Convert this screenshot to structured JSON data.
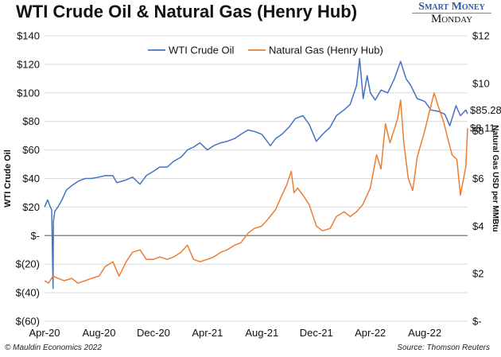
{
  "brand": {
    "line1": "Smart Money",
    "line2": "Monday"
  },
  "footer": {
    "left": "© Mauldin Economics 2022",
    "right": "Source: Thomson Reuters"
  },
  "colors": {
    "oil": "#4472c4",
    "gas": "#ed7d31",
    "grid": "#d9d9d9",
    "zero": "#7f7f7f"
  },
  "chart_data": {
    "type": "line",
    "title": "WTI Crude Oil & Natural Gas (Henry Hub)",
    "xlabel": "",
    "ylabel": "WTI Crude Oil",
    "y2label": "Natural Gas USD per MMBtu",
    "x_ticks": [
      "Apr-20",
      "Aug-20",
      "Dec-20",
      "Apr-21",
      "Aug-21",
      "Dec-21",
      "Apr-22",
      "Aug-22"
    ],
    "y_ticks": [
      "$140",
      "$120",
      "$100",
      "$80",
      "$60",
      "$40",
      "$20",
      "$-",
      "$(20)",
      "$(40)",
      "$(60)"
    ],
    "y2_ticks": [
      "$12",
      "$10",
      "$8",
      "$6",
      "$4",
      "$2",
      "$-"
    ],
    "ylim": [
      -60,
      140
    ],
    "y2lim": [
      0,
      12
    ],
    "grid": true,
    "legend_position": "top",
    "x_range": [
      "2020-04-01",
      "2022-11-05"
    ],
    "series": [
      {
        "name": "WTI Crude Oil",
        "axis": "left",
        "end_label": "$85.28",
        "points": [
          [
            "2020-04-01",
            20
          ],
          [
            "2020-04-08",
            25
          ],
          [
            "2020-04-14",
            20
          ],
          [
            "2020-04-17",
            18
          ],
          [
            "2020-04-20",
            -37
          ],
          [
            "2020-04-21",
            10
          ],
          [
            "2020-04-24",
            17
          ],
          [
            "2020-05-01",
            20
          ],
          [
            "2020-05-10",
            25
          ],
          [
            "2020-05-20",
            32
          ],
          [
            "2020-06-01",
            35
          ],
          [
            "2020-06-15",
            38
          ],
          [
            "2020-07-01",
            40
          ],
          [
            "2020-07-15",
            40
          ],
          [
            "2020-08-01",
            41
          ],
          [
            "2020-08-15",
            42
          ],
          [
            "2020-09-01",
            42
          ],
          [
            "2020-09-10",
            37
          ],
          [
            "2020-10-01",
            39
          ],
          [
            "2020-10-15",
            41
          ],
          [
            "2020-11-01",
            36
          ],
          [
            "2020-11-15",
            42
          ],
          [
            "2020-12-01",
            45
          ],
          [
            "2020-12-15",
            48
          ],
          [
            "2021-01-01",
            48
          ],
          [
            "2021-01-15",
            52
          ],
          [
            "2021-02-01",
            55
          ],
          [
            "2021-02-15",
            60
          ],
          [
            "2021-03-01",
            62
          ],
          [
            "2021-03-15",
            65
          ],
          [
            "2021-04-01",
            60
          ],
          [
            "2021-04-15",
            63
          ],
          [
            "2021-05-01",
            65
          ],
          [
            "2021-05-15",
            66
          ],
          [
            "2021-06-01",
            68
          ],
          [
            "2021-06-15",
            71
          ],
          [
            "2021-07-01",
            74
          ],
          [
            "2021-07-15",
            73
          ],
          [
            "2021-08-01",
            71
          ],
          [
            "2021-08-20",
            63
          ],
          [
            "2021-09-01",
            68
          ],
          [
            "2021-09-15",
            71
          ],
          [
            "2021-10-01",
            76
          ],
          [
            "2021-10-15",
            82
          ],
          [
            "2021-11-01",
            84
          ],
          [
            "2021-11-15",
            78
          ],
          [
            "2021-12-01",
            66
          ],
          [
            "2021-12-15",
            71
          ],
          [
            "2022-01-01",
            76
          ],
          [
            "2022-01-15",
            84
          ],
          [
            "2022-02-01",
            88
          ],
          [
            "2022-02-15",
            92
          ],
          [
            "2022-03-01",
            105
          ],
          [
            "2022-03-08",
            124
          ],
          [
            "2022-03-16",
            96
          ],
          [
            "2022-03-25",
            112
          ],
          [
            "2022-04-01",
            100
          ],
          [
            "2022-04-12",
            95
          ],
          [
            "2022-04-25",
            102
          ],
          [
            "2022-05-10",
            100
          ],
          [
            "2022-05-25",
            110
          ],
          [
            "2022-06-08",
            122
          ],
          [
            "2022-06-20",
            110
          ],
          [
            "2022-07-01",
            105
          ],
          [
            "2022-07-15",
            96
          ],
          [
            "2022-08-01",
            94
          ],
          [
            "2022-08-15",
            88
          ],
          [
            "2022-09-01",
            87
          ],
          [
            "2022-09-15",
            85
          ],
          [
            "2022-09-26",
            77
          ],
          [
            "2022-10-10",
            91
          ],
          [
            "2022-10-20",
            84
          ],
          [
            "2022-11-01",
            88
          ],
          [
            "2022-11-05",
            85.28
          ]
        ]
      },
      {
        "name": "Natural Gas (Henry Hub)",
        "axis": "right",
        "end_label": "$8.11",
        "points": [
          [
            "2020-04-01",
            1.7
          ],
          [
            "2020-04-10",
            1.6
          ],
          [
            "2020-04-20",
            1.9
          ],
          [
            "2020-05-01",
            1.8
          ],
          [
            "2020-05-15",
            1.7
          ],
          [
            "2020-06-01",
            1.8
          ],
          [
            "2020-06-15",
            1.6
          ],
          [
            "2020-07-01",
            1.7
          ],
          [
            "2020-07-15",
            1.8
          ],
          [
            "2020-08-01",
            1.9
          ],
          [
            "2020-08-15",
            2.3
          ],
          [
            "2020-09-01",
            2.5
          ],
          [
            "2020-09-15",
            1.9
          ],
          [
            "2020-10-01",
            2.5
          ],
          [
            "2020-10-15",
            2.9
          ],
          [
            "2020-11-01",
            3.0
          ],
          [
            "2020-11-15",
            2.6
          ],
          [
            "2020-12-01",
            2.6
          ],
          [
            "2020-12-15",
            2.7
          ],
          [
            "2021-01-01",
            2.6
          ],
          [
            "2021-01-15",
            2.7
          ],
          [
            "2021-02-01",
            2.9
          ],
          [
            "2021-02-15",
            3.2
          ],
          [
            "2021-03-01",
            2.6
          ],
          [
            "2021-03-15",
            2.5
          ],
          [
            "2021-04-01",
            2.6
          ],
          [
            "2021-04-15",
            2.7
          ],
          [
            "2021-05-01",
            2.9
          ],
          [
            "2021-05-15",
            3.0
          ],
          [
            "2021-06-01",
            3.2
          ],
          [
            "2021-06-15",
            3.3
          ],
          [
            "2021-07-01",
            3.7
          ],
          [
            "2021-07-15",
            3.9
          ],
          [
            "2021-08-01",
            4.0
          ],
          [
            "2021-08-15",
            4.3
          ],
          [
            "2021-09-01",
            4.7
          ],
          [
            "2021-09-15",
            5.3
          ],
          [
            "2021-09-25",
            5.7
          ],
          [
            "2021-10-06",
            6.3
          ],
          [
            "2021-10-12",
            5.4
          ],
          [
            "2021-10-20",
            5.6
          ],
          [
            "2021-11-01",
            5.3
          ],
          [
            "2021-11-15",
            4.9
          ],
          [
            "2021-12-01",
            4.0
          ],
          [
            "2021-12-15",
            3.8
          ],
          [
            "2022-01-01",
            3.9
          ],
          [
            "2022-01-15",
            4.4
          ],
          [
            "2022-02-01",
            4.6
          ],
          [
            "2022-02-15",
            4.4
          ],
          [
            "2022-03-01",
            4.6
          ],
          [
            "2022-03-15",
            4.9
          ],
          [
            "2022-04-01",
            5.6
          ],
          [
            "2022-04-15",
            7.0
          ],
          [
            "2022-04-25",
            6.4
          ],
          [
            "2022-05-05",
            8.3
          ],
          [
            "2022-05-15",
            7.5
          ],
          [
            "2022-06-01",
            8.5
          ],
          [
            "2022-06-08",
            9.3
          ],
          [
            "2022-06-15",
            7.5
          ],
          [
            "2022-06-25",
            6.0
          ],
          [
            "2022-07-01",
            5.7
          ],
          [
            "2022-07-05",
            5.5
          ],
          [
            "2022-07-15",
            6.9
          ],
          [
            "2022-08-01",
            8.0
          ],
          [
            "2022-08-10",
            8.7
          ],
          [
            "2022-08-22",
            9.6
          ],
          [
            "2022-09-01",
            9.0
          ],
          [
            "2022-09-12",
            8.4
          ],
          [
            "2022-09-20",
            7.8
          ],
          [
            "2022-10-01",
            7.0
          ],
          [
            "2022-10-12",
            6.8
          ],
          [
            "2022-10-20",
            5.3
          ],
          [
            "2022-10-26",
            5.9
          ],
          [
            "2022-11-01",
            6.5
          ],
          [
            "2022-11-05",
            8.11
          ]
        ]
      }
    ]
  }
}
